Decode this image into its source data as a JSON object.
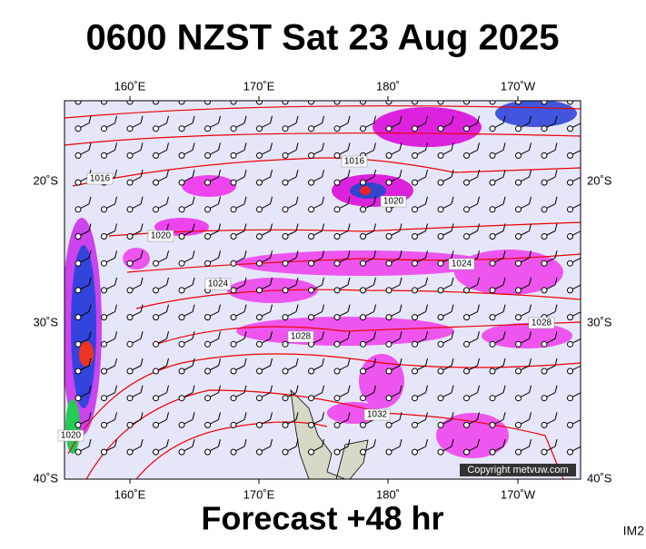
{
  "title": "0600 NZST Sat 23 Aug 2025",
  "map": {
    "lon_labels": [
      "160˚E",
      "170˚E",
      "180˚",
      "170˚W"
    ],
    "lat_labels": [
      "20˚S",
      "30˚S",
      "40˚S"
    ],
    "contour_labels": [
      "1016",
      "1016",
      "1020",
      "1020",
      "1020",
      "1024",
      "1024",
      "1028",
      "1028",
      "1032"
    ],
    "copyright": "Copyright metvuw.com"
  },
  "footer": "Forecast +48 hr",
  "image_id": "IM2"
}
